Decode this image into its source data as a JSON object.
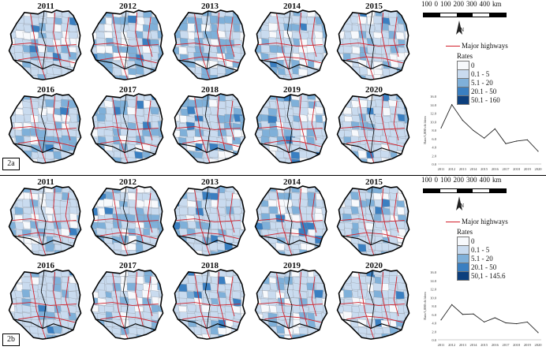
{
  "panels": [
    {
      "tag": "2a",
      "years": [
        "2011",
        "2012",
        "2013",
        "2014",
        "2015",
        "2016",
        "2017",
        "2018",
        "2019",
        "2020"
      ],
      "shading_level": [
        2,
        4,
        3,
        3,
        2,
        2,
        3,
        3,
        3,
        1
      ],
      "scale": {
        "ticks": [
          "100",
          "0",
          "100",
          "200",
          "300",
          "400",
          "km"
        ]
      },
      "north_label": "N",
      "highway_label": "Major highways",
      "legend": {
        "title": "Rates",
        "classes": [
          {
            "label": "0",
            "color": "#f7f9fc"
          },
          {
            "label": "0.1 - 5",
            "color": "#c9dbef"
          },
          {
            "label": "5.1 - 20",
            "color": "#7fb0d9"
          },
          {
            "label": "20.1 - 50",
            "color": "#3a7fc1"
          },
          {
            "label": "50.1 - 160",
            "color": "#0d3f7d"
          }
        ]
      },
      "chart_data": {
        "type": "line",
        "x": [
          "2011",
          "2012",
          "2013",
          "2014",
          "2015",
          "2016",
          "2017",
          "2018",
          "2019",
          "2020"
        ],
        "values": [
          8.5,
          14.0,
          10.3,
          7.9,
          6.1,
          8.3,
          4.8,
          5.4,
          5.7,
          3.0
        ],
        "ylabel": "Rate/1,000 children",
        "yticks": [
          "0.0",
          "2.0",
          "4.0",
          "6.0",
          "8.0",
          "10.0",
          "12.0",
          "14.0",
          "16.0"
        ],
        "ylim": [
          0,
          16
        ]
      }
    },
    {
      "tag": "2b",
      "years": [
        "2011",
        "2012",
        "2013",
        "2014",
        "2015",
        "2016",
        "2017",
        "2018",
        "2019",
        "2020"
      ],
      "shading_level": [
        2,
        3,
        2,
        3,
        2,
        2,
        2,
        1,
        2,
        1
      ],
      "scale": {
        "ticks": [
          "100",
          "0",
          "100",
          "200",
          "300",
          "400",
          "km"
        ]
      },
      "north_label": "N",
      "highway_label": "Major highways",
      "legend": {
        "title": "Rates",
        "classes": [
          {
            "label": "0",
            "color": "#f7f9fc"
          },
          {
            "label": "0.1 - 5",
            "color": "#c9dbef"
          },
          {
            "label": "5.1 - 20",
            "color": "#7fb0d9"
          },
          {
            "label": "20.1 - 50",
            "color": "#3a7fc1"
          },
          {
            "label": "50,1 - 145.6",
            "color": "#0d3f7d"
          }
        ]
      },
      "chart_data": {
        "type": "line",
        "x": [
          "2011",
          "2012",
          "2013",
          "2014",
          "2015",
          "2016",
          "2017",
          "2018",
          "2019",
          "2020"
        ],
        "values": [
          4.7,
          8.3,
          6.0,
          6.1,
          4.2,
          5.2,
          4.0,
          3.8,
          4.2,
          1.7
        ],
        "ylabel": "Rate/1,000 children",
        "yticks": [
          "0.0",
          "2.0",
          "4.0",
          "6.0",
          "8.0",
          "10.0",
          "12.0",
          "14.0",
          "16.0"
        ],
        "ylim": [
          0,
          16
        ]
      }
    }
  ],
  "colors": {
    "highway": "#d21f2a",
    "border": "#000000"
  }
}
